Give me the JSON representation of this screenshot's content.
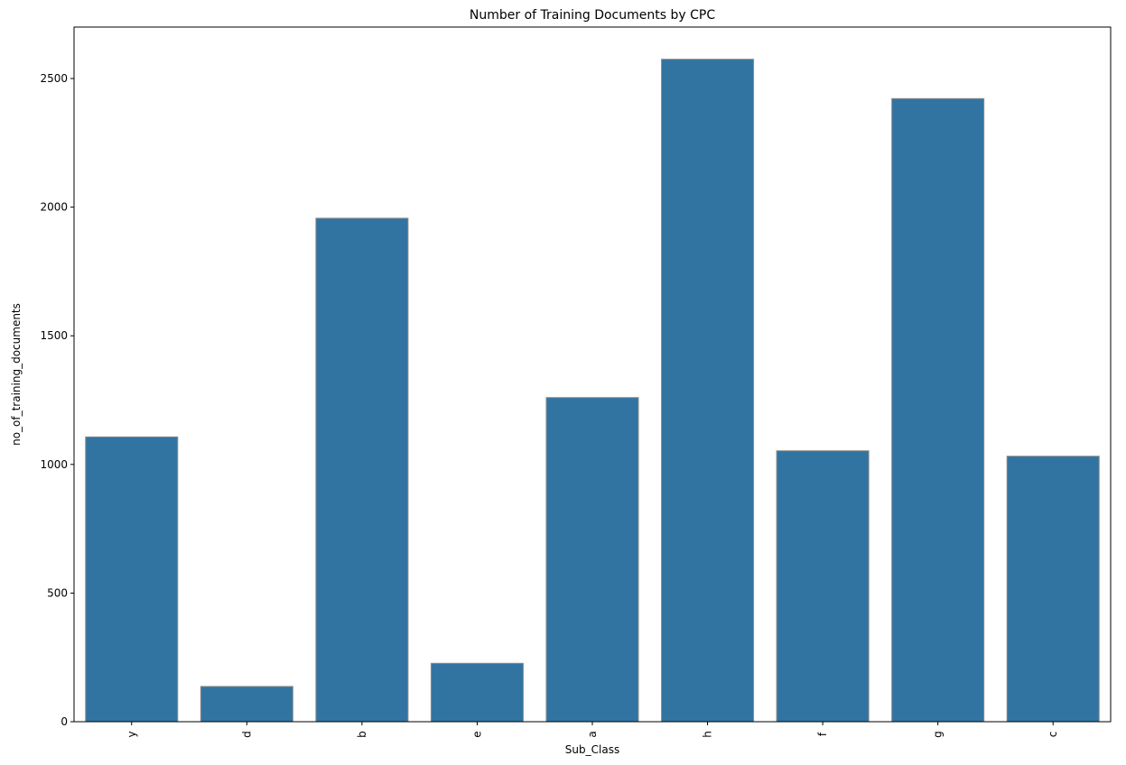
{
  "chart_data": {
    "type": "bar",
    "title": "Number of Training Documents by CPC",
    "xlabel": "Sub_Class",
    "ylabel": "no_of_training_documents",
    "categories": [
      "y",
      "d",
      "b",
      "e",
      "a",
      "h",
      "f",
      "g",
      "c"
    ],
    "values": [
      1107,
      137,
      1957,
      227,
      1260,
      2575,
      1053,
      2422,
      1032
    ],
    "ylim": [
      0,
      2700
    ],
    "yticks": [
      0,
      500,
      1000,
      1500,
      2000,
      2500
    ],
    "xtick_rotation": "vertical",
    "grid": false,
    "legend": "none",
    "colors": {
      "bar": "#3274a1",
      "bar_edge": "#8c8c8c",
      "axis": "#000000"
    }
  }
}
